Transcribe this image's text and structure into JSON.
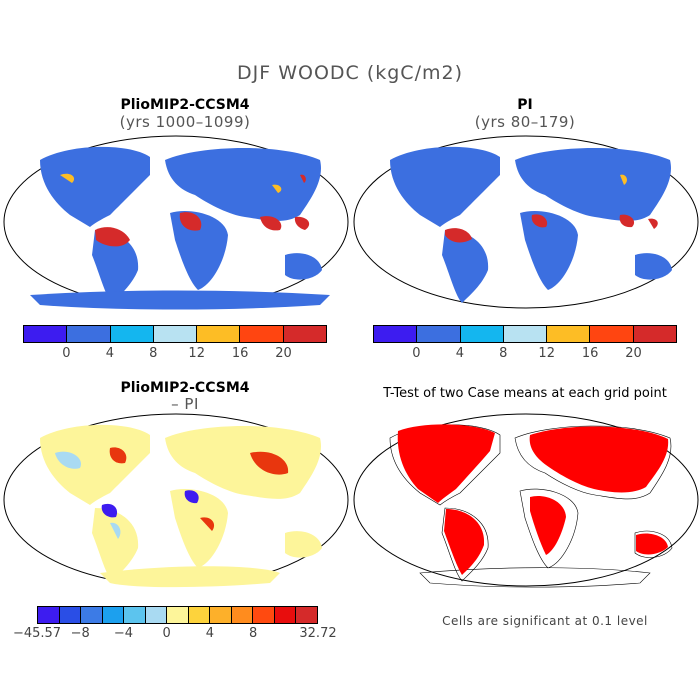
{
  "title": "DJF WOODC (kgC/m2)",
  "panels": [
    {
      "title": "PlioMIP2-CCSM4",
      "subtitle": "(yrs 1000–1099)"
    },
    {
      "title": "PI",
      "subtitle": "(yrs 80–179)"
    },
    {
      "title": "PlioMIP2-CCSM4",
      "subtitle": "– PI"
    },
    {
      "title": "T-Test of two Case means at each grid point",
      "subtitle": ""
    }
  ],
  "colorbar_top": {
    "colors": [
      "#3d1cf0",
      "#3c6fe0",
      "#14b6ef",
      "#b8e2f2",
      "#fdbd25",
      "#ff4511",
      "#d52a2a"
    ],
    "ticks": [
      "0",
      "4",
      "8",
      "12",
      "16",
      "20"
    ]
  },
  "colorbar_bottom": {
    "colors": [
      "#3d1cf0",
      "#2a4ee6",
      "#3c7be6",
      "#1ca0ee",
      "#5cc4ee",
      "#a9daf2",
      "#fdf59a",
      "#fdd33c",
      "#fdb02a",
      "#ff8c1e",
      "#ff4a10",
      "#e80d0d",
      "#d52a2a"
    ],
    "ticks": [
      "−45.57",
      "−8",
      "−4",
      "0",
      "4",
      "8",
      "32.72"
    ]
  },
  "map_colors": {
    "ocean": "#ffffff",
    "panel1_land": "#3c6fe0",
    "panel1_forest": "#d52a2a",
    "panel1_edge": "#fdbd25",
    "panel3_land": "#fdf59a",
    "panel3_pos": "#e8360e",
    "panel3_neg": "#3d1cf0",
    "panel3_light": "#a9daf2",
    "panel4_sig": "#ff0000"
  },
  "significance_note": "Cells are significant at 0.1 level"
}
